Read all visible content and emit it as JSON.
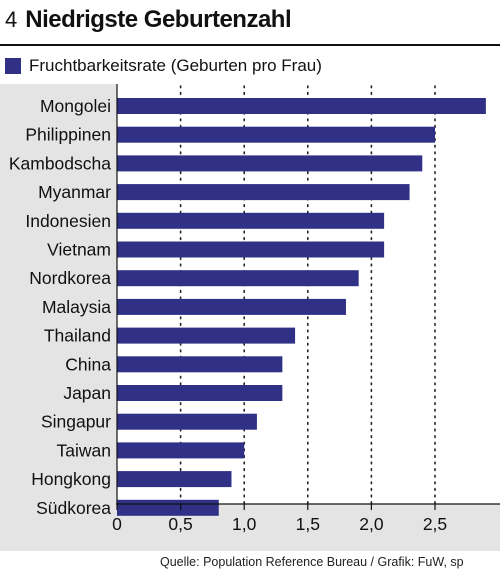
{
  "header": {
    "number": "4",
    "title": "Niedrigste Geburtenzahl"
  },
  "legend": {
    "label": "Fruchtbarkeitsrate (Geburten pro Frau)",
    "color": "#303087"
  },
  "source": "Quelle: Population Reference Bureau / Grafik: FuW, sp",
  "chart_data": {
    "type": "bar",
    "orientation": "horizontal",
    "categories": [
      "Mongolei",
      "Philippinen",
      "Kambodscha",
      "Myanmar",
      "Indonesien",
      "Vietnam",
      "Nordkorea",
      "Malaysia",
      "Thailand",
      "China",
      "Japan",
      "Singapur",
      "Taiwan",
      "Hongkong",
      "Südkorea"
    ],
    "series": [
      {
        "name": "Fruchtbarkeitsrate (Geburten pro Frau)",
        "values": [
          2.9,
          2.5,
          2.4,
          2.3,
          2.1,
          2.1,
          1.9,
          1.8,
          1.4,
          1.3,
          1.3,
          1.1,
          1.0,
          0.9,
          0.8
        ]
      }
    ],
    "xlim": [
      0,
      3.0
    ],
    "xticks": [
      0,
      0.5,
      1.0,
      1.5,
      2.0,
      2.5
    ],
    "xtick_labels": [
      "0",
      "0,5",
      "1,0",
      "1,5",
      "2,0",
      "2,5"
    ],
    "grid": "vertical-dotted",
    "bar_color": "#303087",
    "background_color": "#e4e4e4"
  }
}
